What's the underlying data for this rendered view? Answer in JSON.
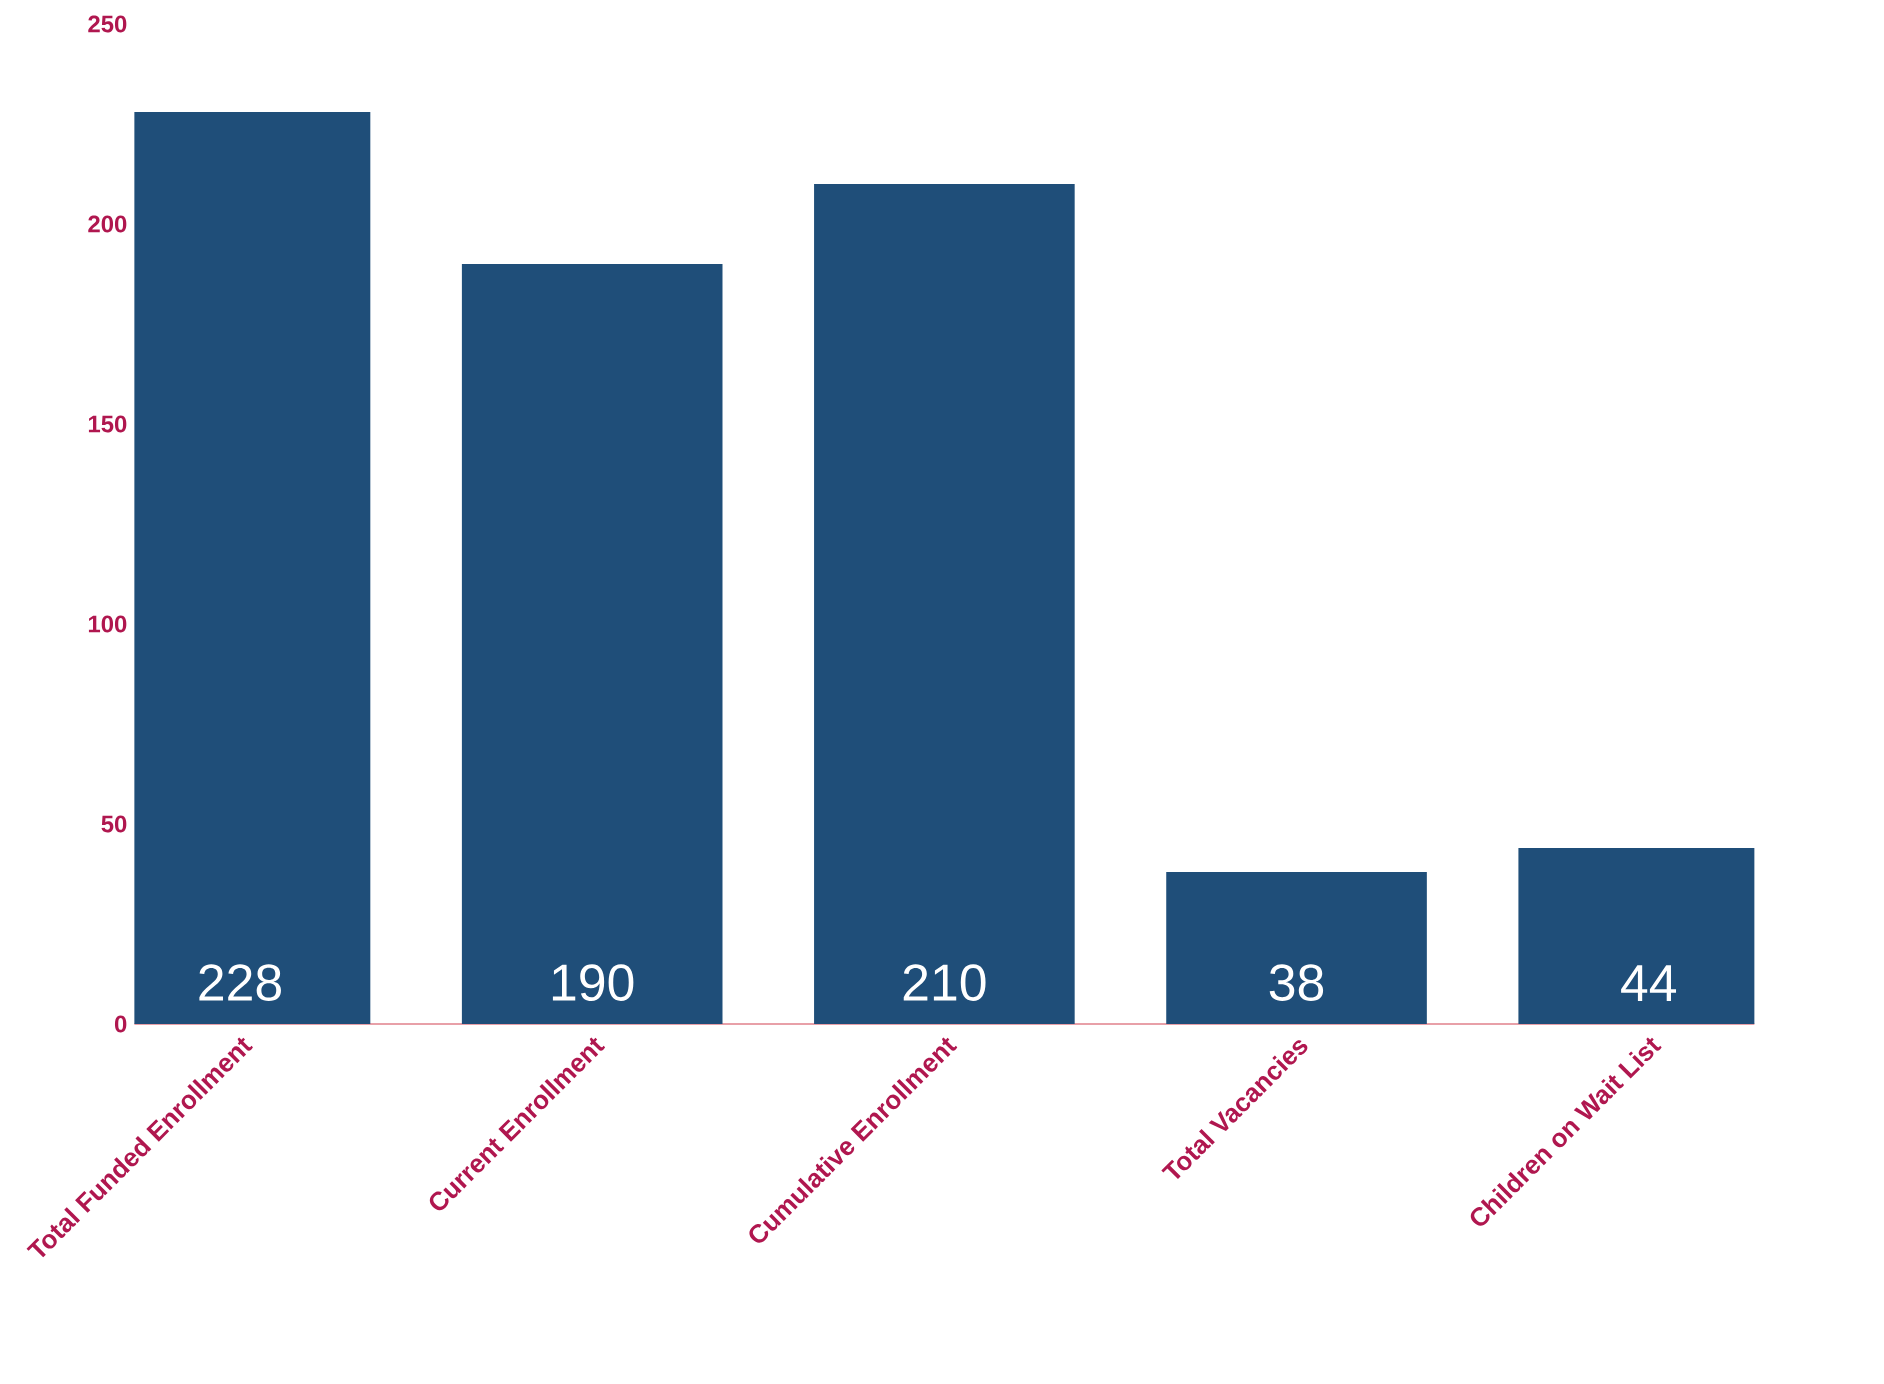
{
  "chart_data": {
    "type": "bar",
    "categories": [
      "Total Funded Enrollment",
      "Current Enrollment",
      "Cumulative Enrollment",
      "Total Vacancies",
      "Children on Wait List"
    ],
    "values": [
      228,
      190,
      210,
      38,
      44
    ],
    "color": "#1f4e79",
    "ylim": [
      0,
      250
    ],
    "yticks": [
      0,
      50,
      100,
      150,
      200,
      250
    ],
    "data_labels": true
  }
}
